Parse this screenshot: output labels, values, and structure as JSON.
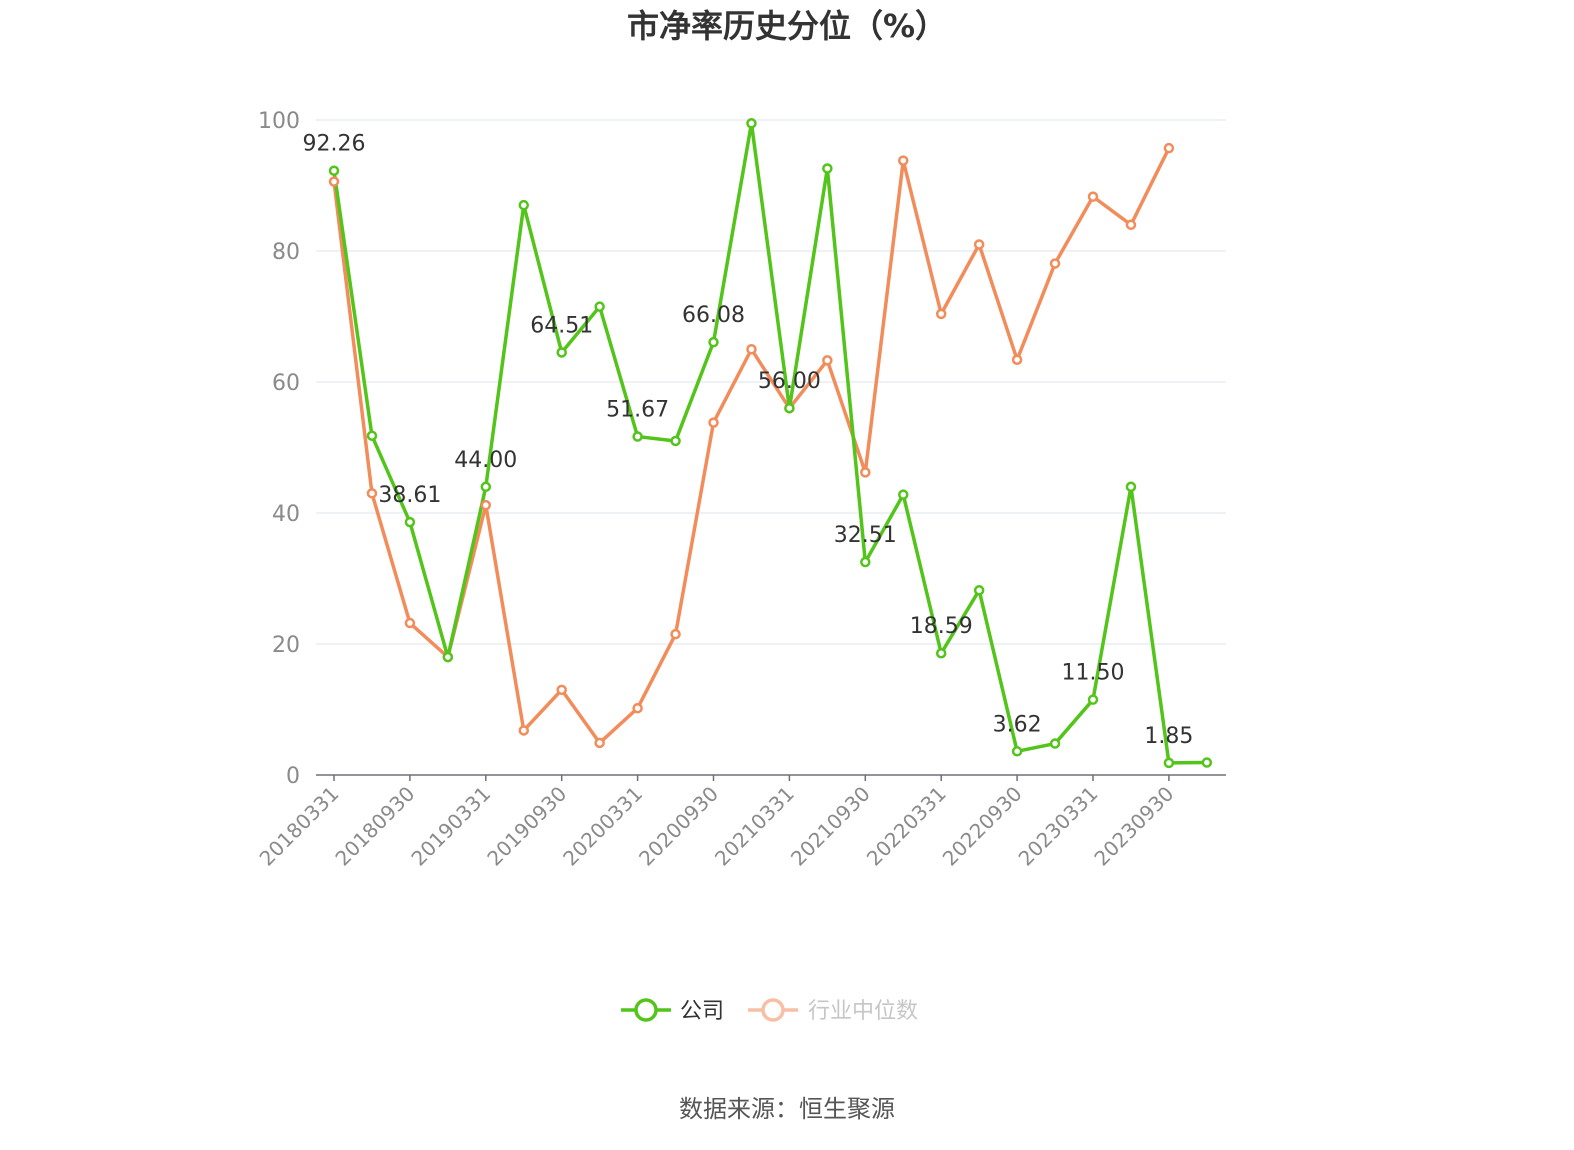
{
  "chart_data": {
    "type": "line",
    "title": "市净率历史分位（%）",
    "source": "数据来源：恒生聚源",
    "ylim": [
      0,
      100
    ],
    "yticks": [
      "0",
      "20",
      "40",
      "60",
      "80",
      "100"
    ],
    "x": [
      "20180331",
      "20180630",
      "20180930",
      "20181231",
      "20190331",
      "20190630",
      "20190930",
      "20191231",
      "20200331",
      "20200630",
      "20200930",
      "20201231",
      "20210331",
      "20210630",
      "20210930",
      "20211231",
      "20220331",
      "20220630",
      "20220930",
      "20221231",
      "20230331",
      "20230630",
      "20230930",
      "20231231"
    ],
    "xtick_labels": [
      "20180331",
      "20180930",
      "20190331",
      "20190930",
      "20200331",
      "20200930",
      "20210331",
      "20210930",
      "20220331",
      "20220930",
      "20230331",
      "20230930"
    ],
    "grid": true,
    "legend_position": "bottom",
    "series": [
      {
        "name": "公司",
        "color": "#52c41a",
        "values": [
          92.26,
          51.8,
          38.61,
          18.0,
          44.0,
          87.0,
          64.51,
          71.5,
          51.67,
          51.0,
          66.08,
          99.5,
          56.0,
          92.6,
          32.51,
          42.8,
          18.59,
          28.2,
          3.62,
          4.8,
          11.5,
          44.0,
          1.85,
          1.9
        ],
        "data_labels": [
          "92.26",
          "",
          "38.61",
          "",
          "44.00",
          "",
          "64.51",
          "",
          "51.67",
          "",
          "66.08",
          "",
          "56.00",
          "",
          "32.51",
          "",
          "18.59",
          "",
          "3.62",
          "",
          "11.50",
          "",
          "1.85",
          ""
        ]
      },
      {
        "name": "行业中位数",
        "color": "#f28c5a",
        "values": [
          90.6,
          43.0,
          23.2,
          18.0,
          41.2,
          6.8,
          13.0,
          4.9,
          10.2,
          21.5,
          53.8,
          65.0,
          56.0,
          63.3,
          46.2,
          93.8,
          70.4,
          81.0,
          63.4,
          78.1,
          88.3,
          84.0,
          95.7,
          null
        ]
      }
    ]
  }
}
